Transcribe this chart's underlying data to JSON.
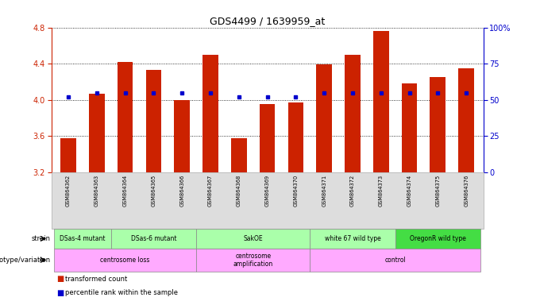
{
  "title": "GDS4499 / 1639959_at",
  "samples": [
    "GSM864362",
    "GSM864363",
    "GSM864364",
    "GSM864365",
    "GSM864366",
    "GSM864367",
    "GSM864368",
    "GSM864369",
    "GSM864370",
    "GSM864371",
    "GSM864372",
    "GSM864373",
    "GSM864374",
    "GSM864375",
    "GSM864376"
  ],
  "transformed_count": [
    3.58,
    4.07,
    4.42,
    4.33,
    4.0,
    4.5,
    3.58,
    3.95,
    3.97,
    4.39,
    4.5,
    4.76,
    4.18,
    4.25,
    4.35
  ],
  "percentile_values": [
    0.52,
    0.55,
    0.55,
    0.55,
    0.55,
    0.55,
    0.52,
    0.52,
    0.52,
    0.55,
    0.55,
    0.55,
    0.55,
    0.55,
    0.55
  ],
  "ylim": [
    3.2,
    4.8
  ],
  "yticks_left": [
    3.2,
    3.6,
    4.0,
    4.4,
    4.8
  ],
  "yticks_right_vals": [
    0,
    25,
    50,
    75,
    100
  ],
  "yticks_right_labels": [
    "0",
    "25",
    "50",
    "75",
    "100%"
  ],
  "bar_color": "#cc2200",
  "dot_color": "#0000cc",
  "bg_color": "#ffffff",
  "strain_groups": [
    {
      "label": "DSas-4 mutant",
      "start": 0,
      "end": 2,
      "color": "#aaffaa"
    },
    {
      "label": "DSas-6 mutant",
      "start": 2,
      "end": 5,
      "color": "#aaffaa"
    },
    {
      "label": "SakOE",
      "start": 5,
      "end": 9,
      "color": "#aaffaa"
    },
    {
      "label": "white 67 wild type",
      "start": 9,
      "end": 12,
      "color": "#aaffaa"
    },
    {
      "label": "OregonR wild type",
      "start": 12,
      "end": 15,
      "color": "#44dd44"
    }
  ],
  "genotype_groups": [
    {
      "label": "centrosome loss",
      "start": 0,
      "end": 5,
      "color": "#ffaaff"
    },
    {
      "label": "centrosome\namplification",
      "start": 5,
      "end": 9,
      "color": "#ffaaff"
    },
    {
      "label": "control",
      "start": 9,
      "end": 15,
      "color": "#ffaaff"
    }
  ]
}
